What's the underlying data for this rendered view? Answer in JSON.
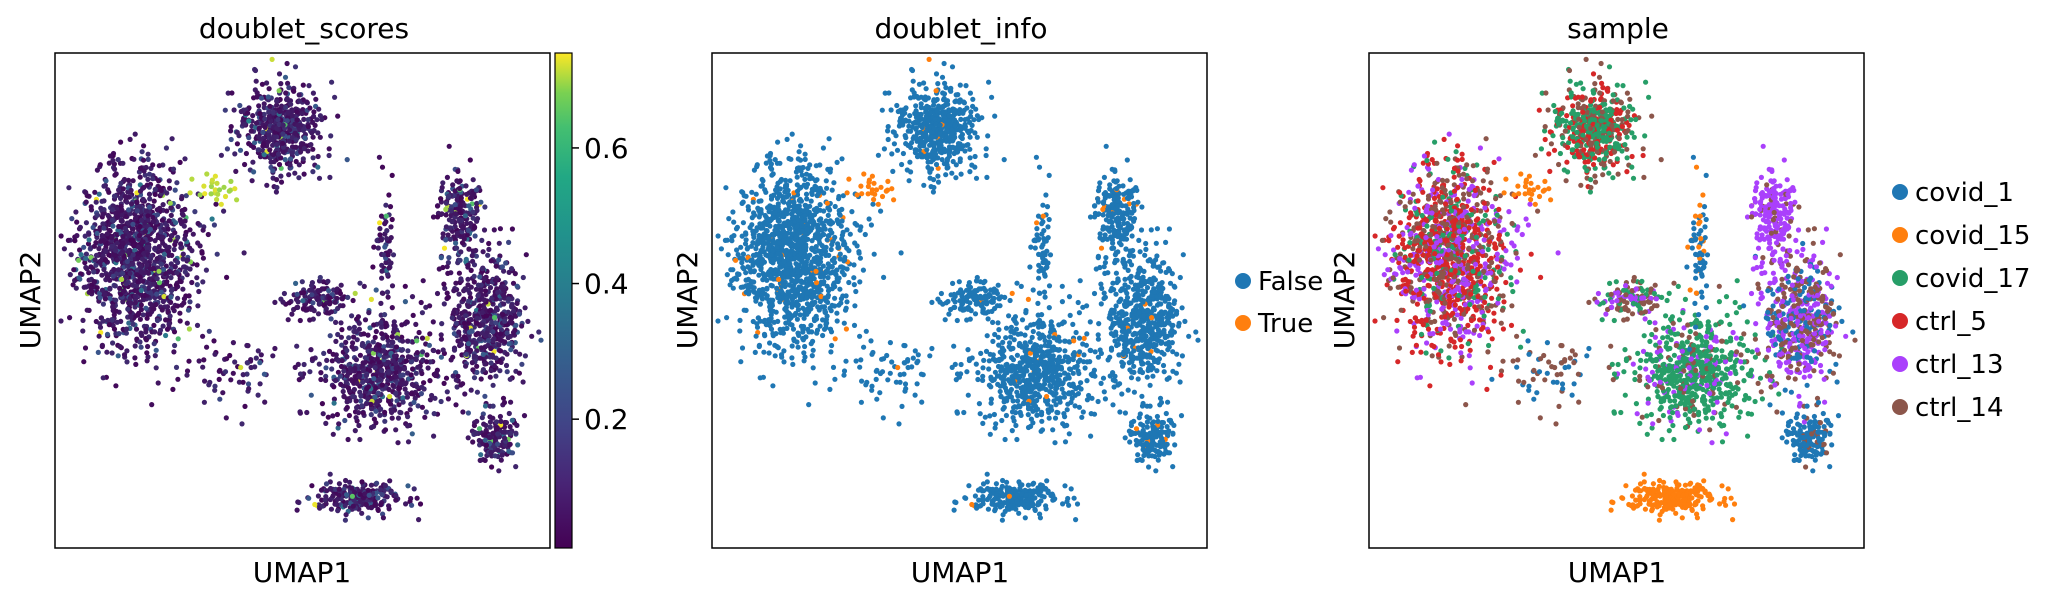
{
  "chart_data": [
    {
      "type": "scatter",
      "title": "doublet_scores",
      "xlabel": "UMAP1",
      "ylabel": "UMAP2",
      "color_by": "continuous",
      "colormap": "viridis",
      "colorbar": {
        "ticks": [
          0.2,
          0.4,
          0.6
        ],
        "range": [
          0.01,
          0.74
        ]
      },
      "grid": false,
      "legend": "none"
    },
    {
      "type": "scatter",
      "title": "doublet_info",
      "xlabel": "UMAP1",
      "ylabel": "UMAP2",
      "color_by": "categorical",
      "grid": false,
      "legend": "right",
      "series": [
        {
          "name": "False",
          "color": "#1f77b4"
        },
        {
          "name": "True",
          "color": "#ff7f0e"
        }
      ]
    },
    {
      "type": "scatter",
      "title": "sample",
      "xlabel": "UMAP1",
      "ylabel": "UMAP2",
      "color_by": "categorical",
      "grid": false,
      "legend": "right",
      "series": [
        {
          "name": "covid_1",
          "color": "#1f77b4"
        },
        {
          "name": "covid_15",
          "color": "#ff7f0e"
        },
        {
          "name": "covid_17",
          "color": "#279e68"
        },
        {
          "name": "ctrl_5",
          "color": "#d62728"
        },
        {
          "name": "ctrl_13",
          "color": "#aa40fc"
        },
        {
          "name": "ctrl_14",
          "color": "#8c564b"
        }
      ]
    }
  ]
}
